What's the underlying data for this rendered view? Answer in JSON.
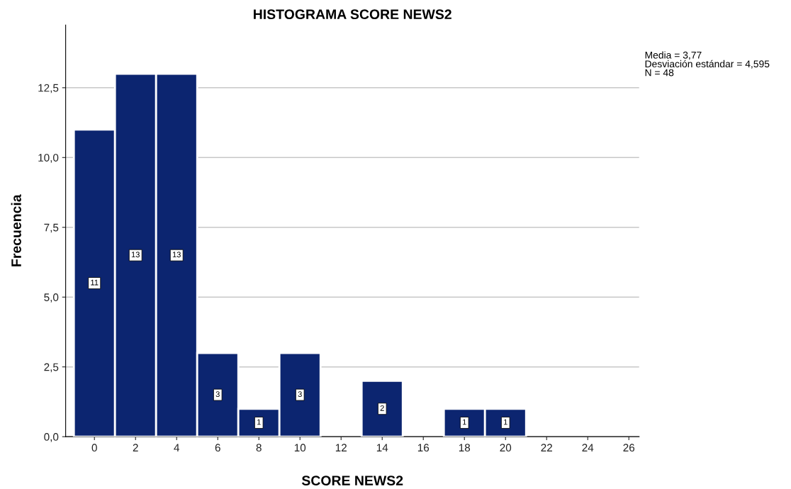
{
  "chart_data": {
    "type": "histogram",
    "title": "HISTOGRAMA SCORE NEWS2",
    "xlabel": "SCORE NEWS2",
    "ylabel": "Frecuencia",
    "bins": [
      -1,
      1,
      3,
      5,
      7,
      9,
      11,
      13,
      15,
      17,
      19,
      21
    ],
    "values": [
      11,
      13,
      13,
      3,
      1,
      3,
      0,
      2,
      0,
      1,
      1
    ],
    "value_labels": [
      "11",
      "13",
      "13",
      "3",
      "1",
      "3",
      null,
      "2",
      null,
      "1",
      "1"
    ],
    "color": "#0c2570",
    "xlim": [
      -1.4,
      26.5
    ],
    "xticks": [
      0,
      2,
      4,
      6,
      8,
      10,
      12,
      14,
      16,
      18,
      20,
      22,
      24,
      26
    ],
    "ylim": [
      0,
      14.75
    ],
    "yticks": [
      {
        "value": 0,
        "label": "0,0"
      },
      {
        "value": 2.5,
        "label": "2,5"
      },
      {
        "value": 5,
        "label": "5,0"
      },
      {
        "value": 7.5,
        "label": "7,5"
      },
      {
        "value": 10,
        "label": "10,0"
      },
      {
        "value": 12.5,
        "label": "12,5"
      }
    ],
    "grid": "y",
    "annotations": [
      "Media = 3,77",
      "Desviación estándar = 4,595",
      "N = 48"
    ]
  }
}
